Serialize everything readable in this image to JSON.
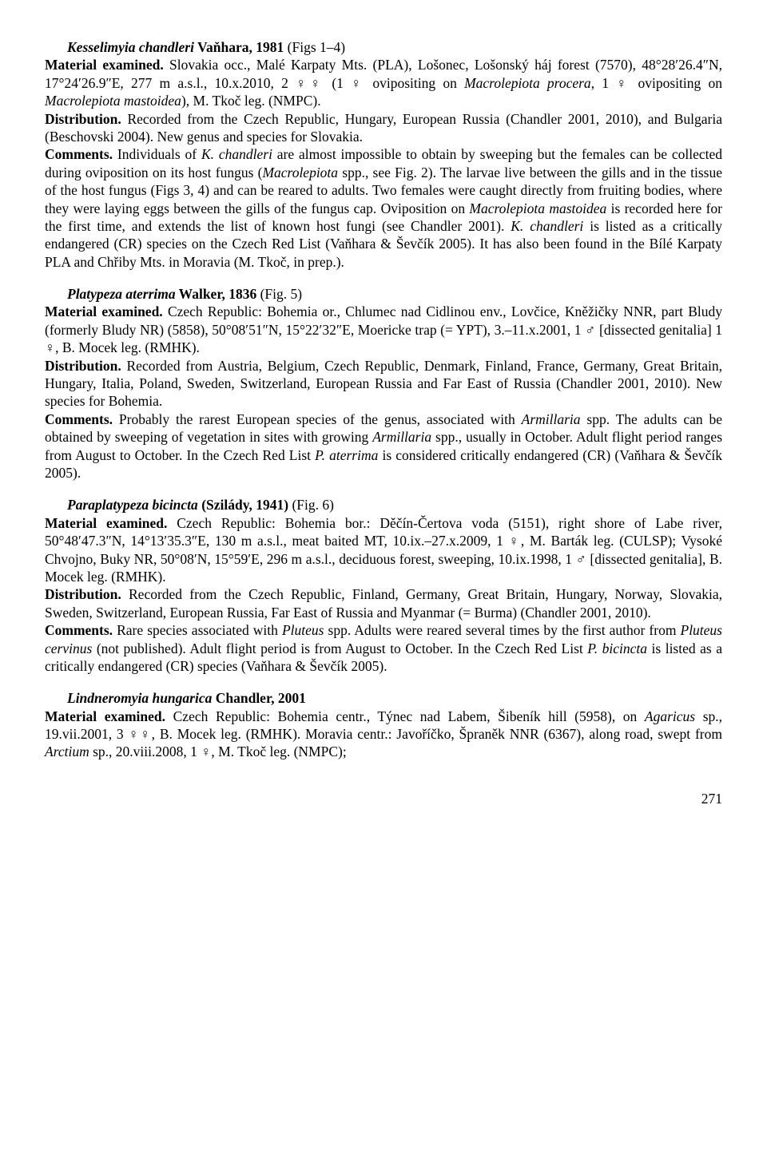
{
  "entries": [
    {
      "species_name": "Kesselimyia chandleri",
      "species_auth": " Vaňhara, 1981 ",
      "figs": "(Figs 1–4)",
      "material_label": "Material examined.",
      "material_text": " Slovakia occ., Malé Karpaty Mts. (PLA), Lošonec, Lošonský háj forest (7570), 48°28′26.4″N, 17°24′26.9″E, 277 m a.s.l., 10.x.2010, 2 ♀♀ (1 ♀ ovipositing on ",
      "material_it1": "Macrolepiota procera",
      "material_mid1": ", 1 ♀ ovipositing on ",
      "material_it2": "Macrolepiota mastoidea",
      "material_end": "), M. Tkoč leg. (NMPC).",
      "dist_label": "Distribution.",
      "dist_text": " Recorded from the Czech Republic, Hungary, European Russia (Chandler 2001, 2010), and Bulgaria (Beschovski 2004). New genus and species for Slovakia.",
      "com_label": "Comments.",
      "com_t1": " Individuals of ",
      "com_i1": "K. chandleri",
      "com_t2": " are almost impossible to obtain by sweeping but the females can be collected during oviposition on its host fungus (",
      "com_i2": "Macrolepiota",
      "com_t3": " spp., see Fig. 2). The larvae live between the gills and in the tissue of the host fungus (Figs 3, 4) and can be reared to adults. Two females were caught directly from fruiting bodies, where they were laying eggs between the gills of the fungus cap. Oviposition on ",
      "com_i3": "Macrolepiota mastoidea",
      "com_t4": " is recorded here for the first time, and extends the list of known host fungi (see Chandler 2001). ",
      "com_i4": "K. chandleri",
      "com_t5": " is listed as a critically endangered (CR) species on the Czech Red List (Vaňhara & Ševčík 2005). It has also been found in the Bílé Karpaty PLA and Chřiby Mts. in Moravia (M. Tkoč, in prep.)."
    },
    {
      "species_name": "Platypeza aterrima",
      "species_auth": " Walker, 1836 ",
      "figs": "(Fig. 5)",
      "material_label": "Material examined.",
      "material_text": " Czech Republic: Bohemia or., Chlumec nad Cidlinou env., Lovčice, Kněžičky NNR, part Bludy (formerly Bludy NR) (5858), 50°08′51″N, 15°22′32″E, Moericke trap (= YPT), 3.–11.x.2001, 1 ♂ [dissected genitalia] 1 ♀, B. Mocek leg. (RMHK).",
      "dist_label": "Distribution.",
      "dist_text": " Recorded from Austria, Belgium, Czech Republic, Denmark, Finland, France, Germany, Great Britain, Hungary, Italia, Poland, Sweden, Switzerland, European Russia and Far East of Russia (Chandler 2001, 2010). New species for Bohemia.",
      "com_label": "Comments.",
      "com_t1": " Probably the rarest European species of the genus, associated with ",
      "com_i1": "Armillaria",
      "com_t2": " spp. The adults can be obtained by sweeping of vegetation in sites with growing ",
      "com_i2": "Armillaria",
      "com_t3": " spp., usually in October. Adult flight period ranges from August to October. In the Czech Red List ",
      "com_i3": "P. aterrima",
      "com_t4": " is considered critically endangered (CR) (Vaňhara & Ševčík 2005)."
    },
    {
      "species_name": "Paraplatypeza bicincta",
      "species_auth": " (Szilády, 1941) ",
      "figs": "(Fig. 6)",
      "material_label": "Material examined.",
      "material_text": " Czech Republic: Bohemia bor.: Děčín-Čertova voda (5151), right shore of Labe river, 50°48′47.3″N, 14°13′35.3″E, 130 m a.s.l., meat baited MT, 10.ix.–27.x.2009, 1 ♀, M. Barták leg. (CULSP); Vysoké Chvojno, Buky NR, 50°08′N, 15°59′E, 296 m a.s.l., deciduous forest, sweeping, 10.ix.1998, 1 ♂ [dissected genitalia], B. Mocek leg. (RMHK).",
      "dist_label": "Distribution.",
      "dist_text": " Recorded from the Czech Republic, Finland, Germany, Great Britain, Hungary, Norway, Slovakia, Sweden, Switzerland, European Russia, Far East of Russia and Myanmar (= Burma) (Chandler 2001, 2010).",
      "com_label": "Comments.",
      "com_t1": " Rare species associated with ",
      "com_i1": "Pluteus",
      "com_t2": " spp. Adults were reared several times by the first author from ",
      "com_i2": "Pluteus cervinus",
      "com_t3": " (not published). Adult flight period is from August to October. In the Czech Red List ",
      "com_i3": "P. bicincta",
      "com_t4": " is listed as a critically endangered (CR) species (Vaňhara & Ševčík 2005)."
    },
    {
      "species_name": "Lindneromyia hungarica",
      "species_auth": " Chandler, 2001",
      "figs": "",
      "material_label": "Material examined.",
      "material_text": " Czech Republic: Bohemia centr., Týnec nad Labem, Šibeník hill (5958), on ",
      "material_it1": "Agaricus",
      "material_mid1": " sp., 19.vii.2001, 3 ♀♀, B. Mocek leg. (RMHK). Moravia centr.: Javoříčko, Špraněk NNR (6367), along road, swept from ",
      "material_it2": "Arctium",
      "material_end": " sp., 20.viii.2008, 1 ♀, M. Tkoč leg. (NMPC);"
    }
  ],
  "page_number": "271"
}
